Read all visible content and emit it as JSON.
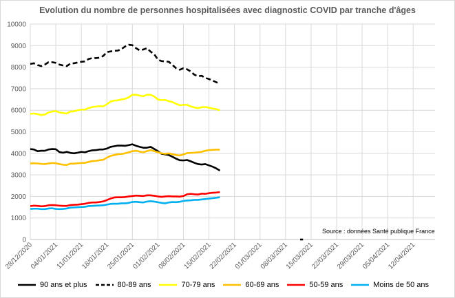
{
  "chart_data": {
    "type": "line",
    "title": "Evolution du nombre de personnes hospitalisées avec diagnostic COVID par tranche d'âges",
    "source": "Source : données Santé publique France",
    "ylim": [
      0,
      10000
    ],
    "yticks": [
      0,
      1000,
      2000,
      3000,
      4000,
      5000,
      6000,
      7000,
      8000,
      9000,
      10000
    ],
    "xlim": [
      "2020-12-28",
      "2021-04-18"
    ],
    "xticks": [
      "28/12/2020",
      "04/01/2021",
      "11/01/2021",
      "18/01/2021",
      "25/01/2021",
      "01/02/2021",
      "08/02/2021",
      "15/02/2021",
      "22/02/2021",
      "01/03/2021",
      "08/03/2021",
      "15/03/2021",
      "22/03/2021",
      "29/03/2021",
      "05/04/2021",
      "12/04/2021"
    ],
    "grid": true,
    "legend": "bottom",
    "start_date": "2020-12-28",
    "series": [
      {
        "name": "90 ans et plus",
        "color": "#000000",
        "dash": "solid",
        "values": [
          4200,
          4180,
          4100,
          4120,
          4120,
          4180,
          4200,
          4190,
          4060,
          4030,
          4070,
          4020,
          4000,
          4030,
          4070,
          4050,
          4100,
          4140,
          4150,
          4180,
          4180,
          4220,
          4300,
          4330,
          4360,
          4360,
          4350,
          4380,
          4420,
          4350,
          4300,
          4260,
          4260,
          4300,
          4200,
          4100,
          3980,
          3950,
          3920,
          3840,
          3750,
          3680,
          3670,
          3690,
          3630,
          3560,
          3500,
          3480,
          3500,
          3440,
          3380,
          3300,
          3200
        ]
      },
      {
        "name": "80-89 ans",
        "color": "#000000",
        "dash": "dashed",
        "values": [
          8150,
          8180,
          8100,
          8050,
          8120,
          8230,
          8230,
          8200,
          8120,
          8080,
          8050,
          8170,
          8180,
          8220,
          8250,
          8270,
          8380,
          8420,
          8420,
          8440,
          8520,
          8700,
          8730,
          8760,
          8770,
          8840,
          8960,
          9040,
          9020,
          8880,
          8780,
          8820,
          8880,
          8720,
          8600,
          8350,
          8280,
          8270,
          8250,
          8100,
          7950,
          7880,
          7950,
          7900,
          7800,
          7650,
          7580,
          7600,
          7500,
          7450,
          7380,
          7300,
          7250
        ]
      },
      {
        "name": "70-79 ans",
        "color": "#ffff00",
        "dash": "solid",
        "values": [
          5830,
          5850,
          5820,
          5780,
          5800,
          5900,
          5940,
          5960,
          5900,
          5870,
          5850,
          5940,
          5950,
          6000,
          6030,
          6030,
          6100,
          6150,
          6170,
          6190,
          6180,
          6280,
          6400,
          6450,
          6460,
          6500,
          6530,
          6600,
          6720,
          6720,
          6680,
          6650,
          6720,
          6720,
          6640,
          6500,
          6470,
          6480,
          6420,
          6380,
          6300,
          6230,
          6250,
          6250,
          6180,
          6130,
          6100,
          6140,
          6150,
          6120,
          6080,
          6050,
          6000
        ]
      },
      {
        "name": "60-69 ans",
        "color": "#ffc000",
        "dash": "solid",
        "values": [
          3530,
          3540,
          3530,
          3510,
          3500,
          3530,
          3550,
          3540,
          3500,
          3470,
          3460,
          3520,
          3520,
          3540,
          3550,
          3560,
          3600,
          3640,
          3650,
          3680,
          3700,
          3800,
          3880,
          3920,
          3960,
          3970,
          4000,
          4050,
          4100,
          4120,
          4080,
          4050,
          4100,
          4150,
          4100,
          4050,
          4000,
          3980,
          4000,
          3960,
          3920,
          3900,
          3950,
          4010,
          4020,
          4030,
          4050,
          4070,
          4120,
          4150,
          4160,
          4170,
          4170
        ]
      },
      {
        "name": "50-59 ans",
        "color": "#ff0000",
        "dash": "solid",
        "values": [
          1550,
          1570,
          1560,
          1540,
          1550,
          1590,
          1600,
          1590,
          1570,
          1560,
          1560,
          1600,
          1610,
          1620,
          1640,
          1660,
          1700,
          1720,
          1720,
          1740,
          1770,
          1830,
          1900,
          1950,
          1960,
          1960,
          1970,
          2000,
          2020,
          2040,
          2030,
          2020,
          2050,
          2050,
          2030,
          2000,
          1980,
          2000,
          2010,
          2000,
          2000,
          1990,
          2020,
          2100,
          2120,
          2100,
          2090,
          2130,
          2120,
          2150,
          2170,
          2180,
          2200
        ]
      },
      {
        "name": "Moins de 50 ans",
        "color": "#00b0f0",
        "dash": "solid",
        "values": [
          1420,
          1430,
          1430,
          1410,
          1410,
          1440,
          1450,
          1420,
          1410,
          1420,
          1440,
          1480,
          1490,
          1500,
          1510,
          1520,
          1550,
          1560,
          1570,
          1580,
          1590,
          1620,
          1650,
          1660,
          1660,
          1680,
          1680,
          1700,
          1740,
          1750,
          1730,
          1720,
          1760,
          1780,
          1760,
          1730,
          1700,
          1680,
          1720,
          1740,
          1730,
          1750,
          1790,
          1810,
          1820,
          1840,
          1840,
          1860,
          1880,
          1900,
          1920,
          1940,
          1960
        ]
      }
    ]
  }
}
